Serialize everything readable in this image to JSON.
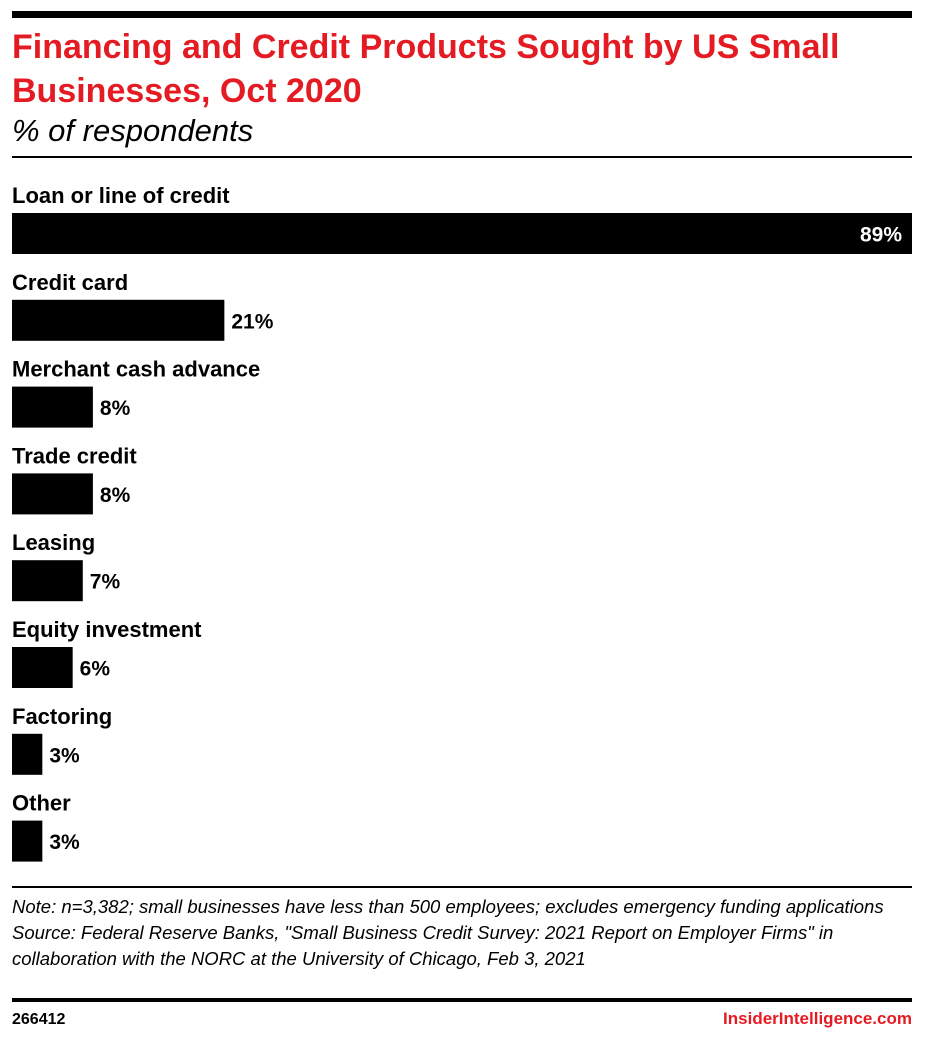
{
  "header": {
    "title": "Financing and Credit Products Sought by US Small Businesses, Oct 2020",
    "subtitle": "% of respondents"
  },
  "chart_data": {
    "type": "bar",
    "orientation": "horizontal",
    "categories": [
      "Loan or line of credit",
      "Credit card",
      "Merchant cash advance",
      "Trade credit",
      "Leasing",
      "Equity investment",
      "Factoring",
      "Other"
    ],
    "values": [
      89,
      21,
      8,
      8,
      7,
      6,
      3,
      3
    ],
    "value_labels": [
      "89%",
      "21%",
      "8%",
      "8%",
      "7%",
      "6%",
      "3%",
      "3%"
    ],
    "xlim": [
      0,
      89
    ],
    "grid": false,
    "bar_color": "#000000"
  },
  "footer": {
    "note": "Note: n=3,382; small businesses have less than 500 employees; excludes emergency funding applications",
    "source": "Source: Federal Reserve Banks, \"Small Business Credit Survey: 2021 Report on Employer Firms\" in collaboration with the NORC at the University of Chicago, Feb 3, 2021",
    "chart_id": "266412",
    "brand": "InsiderIntelligence.com"
  },
  "colors": {
    "accent": "#e41b23",
    "bar": "#000000",
    "value_inside": "#ffffff",
    "value_outside": "#000000"
  }
}
